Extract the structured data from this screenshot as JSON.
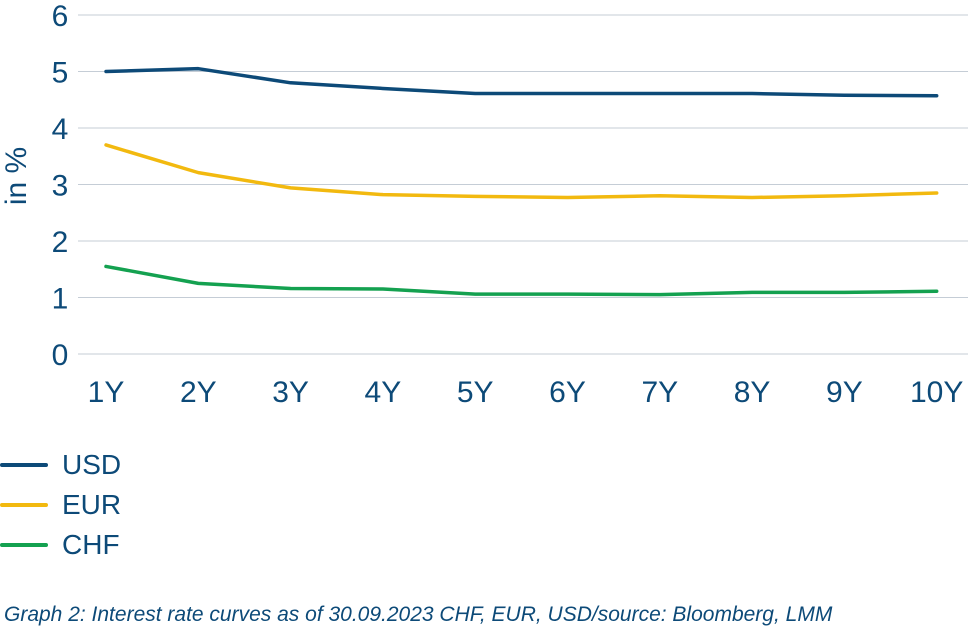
{
  "chart_data": {
    "type": "line",
    "ylabel": "in %",
    "xlabel": "",
    "categories": [
      "1Y",
      "2Y",
      "3Y",
      "4Y",
      "5Y",
      "6Y",
      "7Y",
      "8Y",
      "9Y",
      "10Y"
    ],
    "ylim": [
      0,
      6
    ],
    "yticks": [
      "0",
      "1",
      "2",
      "3",
      "4",
      "5",
      "6"
    ],
    "grid": true,
    "legend_position": "bottom-left",
    "series": [
      {
        "name": "USD",
        "color": "#0d4a78",
        "values": [
          5.0,
          5.05,
          4.8,
          4.7,
          4.61,
          4.61,
          4.61,
          4.61,
          4.58,
          4.57
        ]
      },
      {
        "name": "EUR",
        "color": "#f2b90f",
        "values": [
          3.7,
          3.21,
          2.94,
          2.82,
          2.79,
          2.77,
          2.8,
          2.77,
          2.8,
          2.85
        ]
      },
      {
        "name": "CHF",
        "color": "#14a150",
        "values": [
          1.55,
          1.25,
          1.16,
          1.15,
          1.06,
          1.06,
          1.05,
          1.09,
          1.09,
          1.11
        ]
      }
    ]
  },
  "caption": "Graph 2: Interest rate curves as of 30.09.2023 CHF, EUR, USD/source: Bloomberg, LMM"
}
